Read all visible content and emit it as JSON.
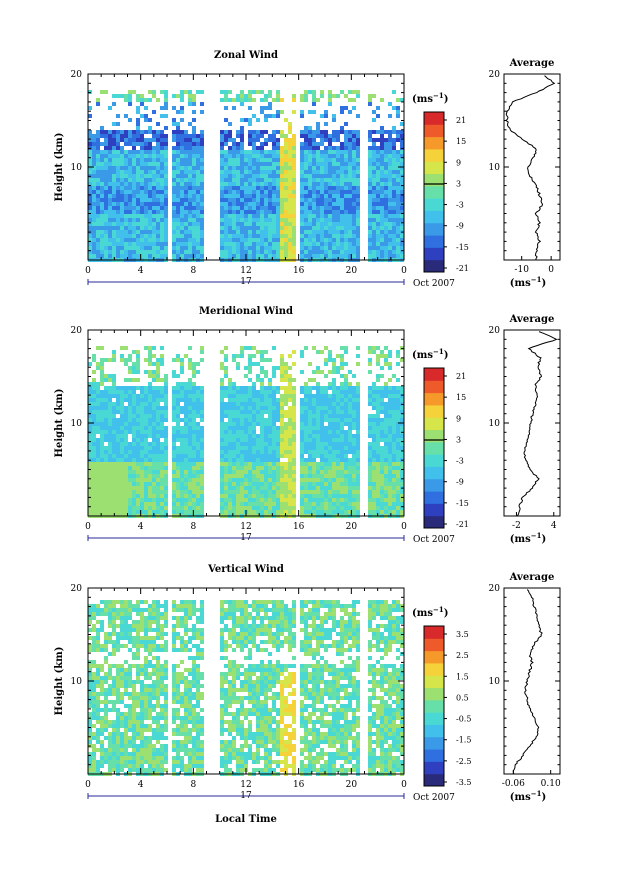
{
  "panels": [
    {
      "title": "Zonal Wind",
      "ylabel": "Height (km)",
      "yticks": [
        "10",
        "20"
      ],
      "xticks": [
        "0",
        "4",
        "8",
        "12",
        "16",
        "20",
        "0"
      ],
      "day": "17",
      "date_note": "Oct 2007",
      "unit": "(ms",
      "unit_exp": "−1",
      "colorbar_labels": [
        "21",
        "15",
        "9",
        "3",
        "-3",
        "-9",
        "-15",
        "-21"
      ],
      "avg_title": "Average",
      "avg_yticks": [
        "10",
        "20"
      ],
      "avg_xticks": [
        "-10",
        "0"
      ],
      "avg_unit": "(ms",
      "avg_unit_exp": "−1"
    },
    {
      "title": "Meridional Wind",
      "ylabel": "Height (km)",
      "yticks": [
        "10",
        "20"
      ],
      "xticks": [
        "0",
        "4",
        "8",
        "12",
        "16",
        "20",
        "0"
      ],
      "day": "17",
      "date_note": "Oct 2007",
      "unit": "(ms",
      "unit_exp": "−1",
      "colorbar_labels": [
        "21",
        "15",
        "9",
        "3",
        "-3",
        "-9",
        "-15",
        "-21"
      ],
      "avg_title": "Average",
      "avg_yticks": [
        "10",
        "20"
      ],
      "avg_xticks": [
        "-2",
        "4"
      ],
      "avg_unit": "(ms",
      "avg_unit_exp": "−1"
    },
    {
      "title": "Vertical Wind",
      "ylabel": "Height (km)",
      "yticks": [
        "10",
        "20"
      ],
      "xticks": [
        "0",
        "4",
        "8",
        "12",
        "16",
        "20",
        "0"
      ],
      "day": "17",
      "date_note": "Oct 2007",
      "unit": "(ms",
      "unit_exp": "−1",
      "colorbar_labels": [
        "3.5",
        "2.5",
        "1.5",
        "0.5",
        "-0.5",
        "-1.5",
        "-2.5",
        "-3.5"
      ],
      "avg_title": "Average",
      "avg_yticks": [
        "10",
        "20"
      ],
      "avg_xticks": [
        "-0.06",
        "0.10"
      ],
      "avg_unit": "(ms",
      "avg_unit_exp": "−1"
    }
  ],
  "xlabel": "Local Time",
  "colormap": [
    "#2a2a7a",
    "#2e3fbf",
    "#2f6fe0",
    "#3a9ae8",
    "#40c0ea",
    "#49d8d4",
    "#66e0a8",
    "#9be070",
    "#d6e64a",
    "#f5d23a",
    "#f59a2a",
    "#ee5a2a",
    "#d82a2a"
  ],
  "chart_data": [
    {
      "type": "heatmap",
      "title": "Zonal Wind",
      "x_label": "Local Time",
      "y_label": "Height (km)",
      "x_range": [
        0,
        24
      ],
      "y_range": [
        0,
        20
      ],
      "colorbar_range": [
        -21,
        21
      ],
      "colorbar_unit": "ms-1",
      "data_gaps_hours": [
        [
          5.8,
          6.2
        ],
        [
          8.8,
          10.0
        ],
        [
          15.6,
          16.0
        ],
        [
          20.6,
          21.0
        ]
      ],
      "profile": {
        "title": "Average",
        "x_range": [
          -16,
          3
        ],
        "heights": [
          0,
          1,
          2,
          3,
          4,
          5,
          6,
          7,
          8,
          9,
          10,
          11,
          12,
          13,
          14,
          15,
          16,
          17,
          18,
          19,
          20
        ],
        "values": [
          -5,
          -5,
          -4,
          -5,
          -4,
          -5,
          -3,
          -4,
          -5,
          -7,
          -8,
          -6,
          -5,
          -10,
          -14,
          -15,
          -15,
          -13,
          -5,
          1,
          -3
        ]
      }
    },
    {
      "type": "heatmap",
      "title": "Meridional Wind",
      "x_label": "Local Time",
      "y_label": "Height (km)",
      "x_range": [
        0,
        24
      ],
      "y_range": [
        0,
        20
      ],
      "colorbar_range": [
        -21,
        21
      ],
      "colorbar_unit": "ms-1",
      "data_gaps_hours": [
        [
          5.8,
          6.2
        ],
        [
          8.8,
          10.0
        ],
        [
          15.6,
          16.0
        ],
        [
          20.6,
          21.0
        ]
      ],
      "profile": {
        "title": "Average",
        "x_range": [
          -4,
          5
        ],
        "heights": [
          0,
          1,
          2,
          3,
          4,
          5,
          6,
          7,
          8,
          9,
          10,
          11,
          12,
          13,
          14,
          15,
          16,
          17,
          18,
          19,
          20
        ],
        "values": [
          -1.8,
          -1.5,
          -1.0,
          0.5,
          1.5,
          0.2,
          -0.5,
          -0.8,
          -0.2,
          0.2,
          0.3,
          0.6,
          1.0,
          1.3,
          1.0,
          2.0,
          1.5,
          1.8,
          0.0,
          4.5,
          1.0
        ]
      }
    },
    {
      "type": "heatmap",
      "title": "Vertical Wind",
      "x_label": "Local Time",
      "y_label": "Height (km)",
      "x_range": [
        0,
        24
      ],
      "y_range": [
        0,
        20
      ],
      "colorbar_range": [
        -3.5,
        3.5
      ],
      "colorbar_unit": "ms-1",
      "data_gaps_hours": [
        [
          5.8,
          6.2
        ],
        [
          8.8,
          10.0
        ],
        [
          15.6,
          16.0
        ],
        [
          20.6,
          21.0
        ]
      ],
      "profile": {
        "title": "Average",
        "x_range": [
          -0.1,
          0.14
        ],
        "heights": [
          0,
          1,
          2,
          3,
          4,
          5,
          6,
          7,
          8,
          9,
          10,
          11,
          12,
          13,
          14,
          15,
          16,
          17,
          18,
          19,
          20
        ],
        "values": [
          -0.06,
          -0.05,
          -0.02,
          0.01,
          0.04,
          0.05,
          0.03,
          0.01,
          0.0,
          -0.01,
          0.0,
          0.01,
          0.02,
          0.01,
          0.03,
          0.06,
          0.05,
          0.04,
          0.03,
          0.02,
          0.0
        ]
      }
    }
  ]
}
